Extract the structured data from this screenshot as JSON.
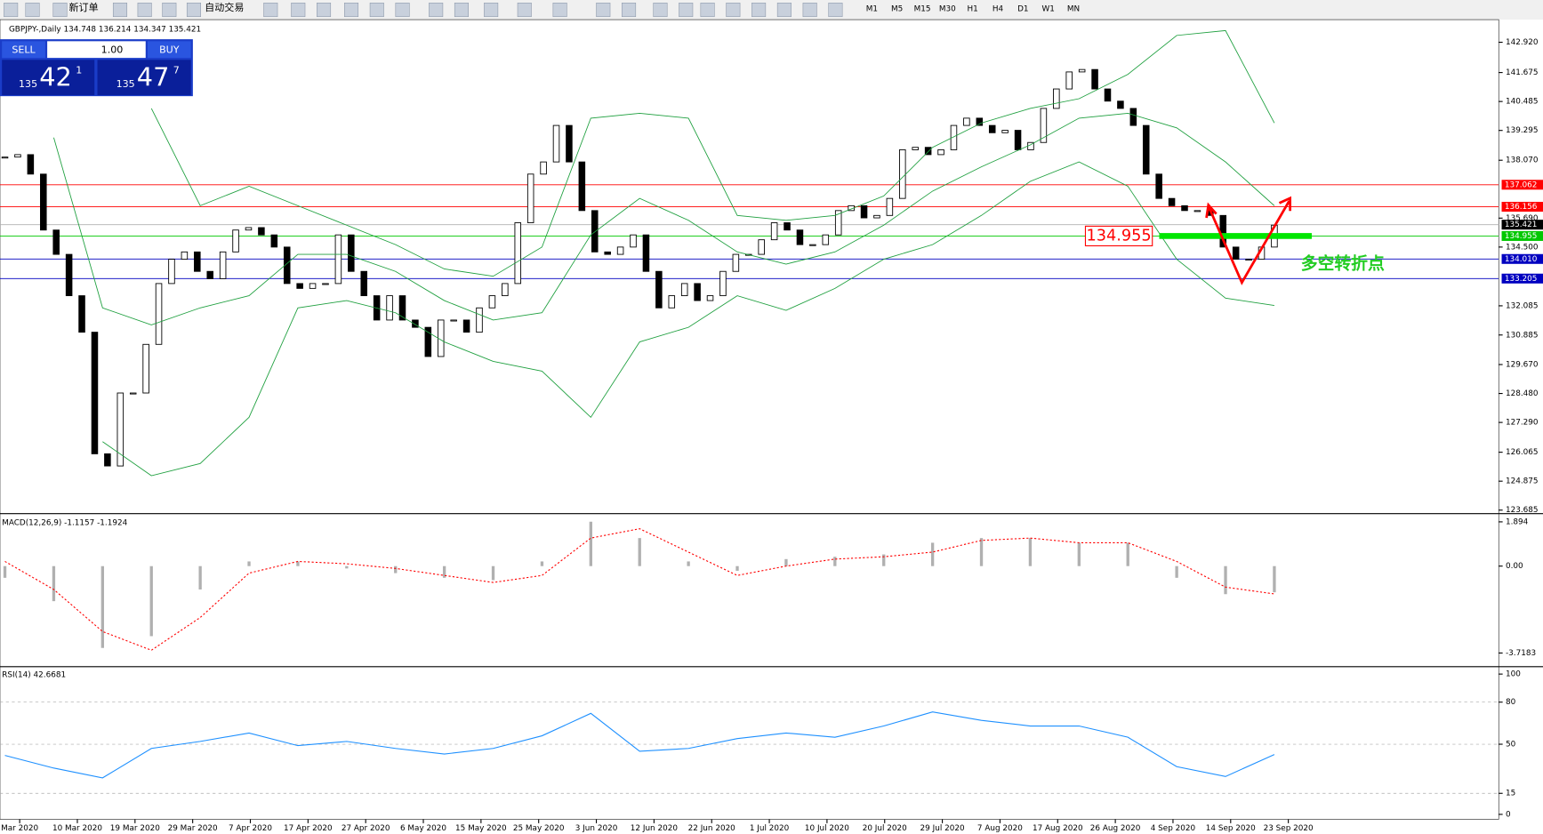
{
  "toolbar": {
    "labels": [
      "新订单",
      "自动交易"
    ],
    "timeframes": [
      "M1",
      "M5",
      "M15",
      "M30",
      "H1",
      "H4",
      "D1",
      "W1",
      "MN"
    ]
  },
  "trade": {
    "sell": "SELL",
    "buy": "BUY",
    "lots": "1.00",
    "sell_price": {
      "big": "135",
      "pips": "42",
      "frac": "1"
    },
    "buy_price": {
      "big": "135",
      "pips": "47",
      "frac": "7"
    }
  },
  "main": {
    "title": "GBPJPY-,Daily  134.748 136.214 134.347 135.421",
    "ylim": [
      123.56,
      143.77
    ],
    "yticks": [
      {
        "value": 142.92,
        "label": "142.920"
      },
      {
        "value": 141.675,
        "label": "141.675"
      },
      {
        "value": 140.485,
        "label": "140.485"
      },
      {
        "value": 139.295,
        "label": "139.295"
      },
      {
        "value": 138.07,
        "label": "138.070"
      },
      {
        "value": 135.69,
        "label": "135.690"
      },
      {
        "value": 134.5,
        "label": "134.500"
      },
      {
        "value": 132.085,
        "label": "132.085"
      },
      {
        "value": 130.885,
        "label": "130.885"
      },
      {
        "value": 129.67,
        "label": "129.670"
      },
      {
        "value": 128.48,
        "label": "128.480"
      },
      {
        "value": 127.29,
        "label": "127.290"
      },
      {
        "value": 126.065,
        "label": "126.065"
      },
      {
        "value": 124.875,
        "label": "124.875"
      },
      {
        "value": 123.685,
        "label": "123.685"
      }
    ],
    "closes": [
      138.2,
      138.3,
      137.5,
      135.2,
      134.2,
      132.5,
      131,
      126,
      125.5,
      128.5,
      128.5,
      130.5,
      133,
      134,
      134.3,
      133.5,
      133.2,
      134.3,
      135.2,
      135.3,
      135,
      134.5,
      133,
      132.8,
      133,
      133,
      135,
      133.5,
      132.5,
      131.5,
      132.5,
      131.5,
      131.2,
      130,
      131.5,
      131.5,
      131,
      132,
      132.5,
      133,
      135.5,
      137.5,
      138,
      139.5,
      138,
      136,
      134.3,
      134.2,
      134.5,
      135,
      133.5,
      132,
      132.5,
      133,
      132.3,
      132.5,
      133.5,
      134.2,
      134.2,
      134.8,
      135.5,
      135.2,
      134.6,
      134.6,
      135,
      136,
      136.2,
      135.7,
      135.8,
      136.5,
      138.5,
      138.6,
      138.3,
      138.5,
      139.5,
      139.8,
      139.5,
      139.2,
      139.3,
      138.5,
      138.8,
      140.2,
      141,
      141.7,
      141.8,
      141,
      140.5,
      140.2,
      139.5,
      137.5,
      136.5,
      136.2,
      136,
      136,
      135.8,
      134.5,
      134,
      134,
      134.5,
      135.4
    ],
    "bands": {
      "upper": [
        null,
        null,
        null,
        140.2,
        136.2,
        137,
        136.2,
        135.4,
        134.6,
        133.6,
        133.3,
        134.5,
        139.8,
        140,
        139.8,
        135.8,
        135.6,
        135.8,
        136.6,
        138.6,
        139.6,
        140.2,
        140.6,
        141.6,
        143.2,
        143.4,
        139.6
      ],
      "middle": [
        null,
        139,
        132,
        131.3,
        132,
        132.5,
        134.2,
        134.2,
        133.5,
        132.3,
        131.5,
        131.8,
        135,
        136.5,
        135.6,
        134.3,
        133.8,
        134.3,
        135.4,
        136.8,
        137.8,
        138.7,
        139.8,
        140,
        139.4,
        138,
        136.2
      ],
      "lower": [
        null,
        null,
        126.5,
        125.1,
        125.6,
        127.5,
        132,
        132.3,
        131.8,
        130.6,
        129.8,
        129.4,
        127.5,
        130.6,
        131.2,
        132.5,
        131.9,
        132.8,
        134,
        134.6,
        135.8,
        137.2,
        138,
        137,
        134,
        132.4,
        132.1
      ]
    },
    "levels": [
      {
        "value": 137.062,
        "label": "137.062",
        "color": "#ff0000"
      },
      {
        "value": 136.156,
        "label": "136.156",
        "color": "#ff0000"
      },
      {
        "value": 135.421,
        "label": "135.421",
        "color": "#000000"
      },
      {
        "value": 134.955,
        "label": "134.955",
        "color": "#00c800"
      },
      {
        "value": 134.01,
        "label": "134.010",
        "color": "#0000c0"
      },
      {
        "value": 133.205,
        "label": "133.205",
        "color": "#0000c0"
      }
    ],
    "annotation_price": "134.955",
    "annotation_text": "多空转折点"
  },
  "macd": {
    "title": "MACD(12,26,9) -1.1157 -1.1924",
    "ylim": [
      -4.2,
      2.14
    ],
    "yticks": [
      1.894,
      {
        "value": 0,
        "label": "0.00"
      },
      -3.7183
    ],
    "histogram": [
      -0.5,
      -1.5,
      -3.5,
      -3,
      -1,
      0.2,
      0.2,
      -0.1,
      -0.3,
      -0.5,
      -0.6,
      0.2,
      1.9,
      1.2,
      0.2,
      -0.2,
      0.3,
      0.4,
      0.5,
      1,
      1.2,
      1.2,
      1,
      1,
      -0.5,
      -1.2,
      -1.12
    ],
    "signal": [
      0.2,
      -1,
      -2.8,
      -3.6,
      -2.2,
      -0.3,
      0.2,
      0.1,
      -0.1,
      -0.4,
      -0.7,
      -0.4,
      1.2,
      1.6,
      0.6,
      -0.4,
      0,
      0.3,
      0.4,
      0.6,
      1.1,
      1.2,
      1,
      1,
      0.2,
      -0.9,
      -1.19
    ]
  },
  "rsi": {
    "title": "RSI(14) 42.6681",
    "ylim": [
      -3.5,
      104.9
    ],
    "yticks": [
      100,
      80,
      50,
      15,
      0
    ],
    "values": [
      42,
      33,
      26,
      47,
      52,
      58,
      49,
      52,
      47,
      43,
      47,
      56,
      72,
      45,
      47,
      54,
      58,
      55,
      63,
      73,
      67,
      63,
      63,
      55,
      34,
      27,
      42.67
    ]
  },
  "dates": [
    "Mar 2020",
    "10 Mar 2020",
    "19 Mar 2020",
    "29 Mar 2020",
    "7 Apr 2020",
    "17 Apr 2020",
    "27 Apr 2020",
    "6 May 2020",
    "15 May 2020",
    "25 May 2020",
    "3 Jun 2020",
    "12 Jun 2020",
    "22 Jun 2020",
    "1 Jul 2020",
    "10 Jul 2020",
    "20 Jul 2020",
    "29 Jul 2020",
    "7 Aug 2020",
    "17 Aug 2020",
    "26 Aug 2020",
    "4 Sep 2020",
    "14 Sep 2020",
    "23 Sep 2020"
  ]
}
